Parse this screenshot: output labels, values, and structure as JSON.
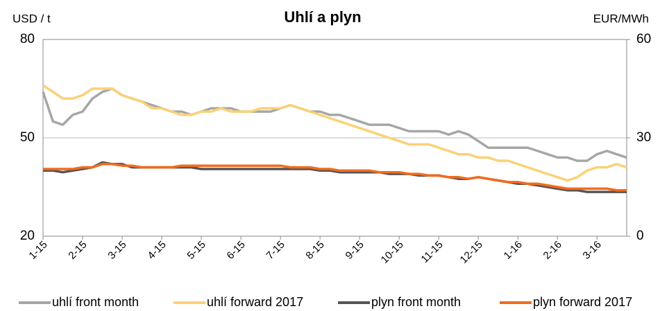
{
  "chart_data": {
    "type": "line",
    "title": "Uhlí a plyn",
    "y_label": "USD / t",
    "y2_label": "EUR/MWh",
    "categories": [
      "1-15",
      null,
      null,
      null,
      "2-15",
      null,
      null,
      null,
      "3-15",
      null,
      null,
      null,
      "4-15",
      null,
      null,
      null,
      "5-15",
      null,
      null,
      null,
      "6-15",
      null,
      null,
      null,
      "7-15",
      null,
      null,
      null,
      "8-15",
      null,
      null,
      null,
      "9-15",
      null,
      null,
      null,
      "10-15",
      null,
      null,
      null,
      "11-15",
      null,
      null,
      null,
      "12-15",
      null,
      null,
      null,
      "1-16",
      null,
      null,
      null,
      "2-16",
      null,
      null,
      null,
      "3-16",
      null,
      null,
      null
    ],
    "ylim": [
      20,
      80
    ],
    "yticks": [
      20,
      50,
      80
    ],
    "y2lim": [
      0,
      60
    ],
    "y2ticks": [
      0,
      30,
      60
    ],
    "grid": true,
    "legend": "bottom",
    "series": [
      {
        "name": "uhlí front month",
        "color": "#a6a6a6",
        "values": [
          64,
          55,
          54,
          57,
          58,
          62,
          64,
          65,
          63,
          62,
          61,
          60,
          59,
          58,
          58,
          57,
          58,
          59,
          59,
          59,
          58,
          58,
          58,
          58,
          59,
          60,
          59,
          58,
          58,
          57,
          57,
          56,
          55,
          54,
          54,
          54,
          53,
          52,
          52,
          52,
          52,
          51,
          52,
          51,
          49,
          47,
          47,
          47,
          47,
          47,
          46,
          45,
          44,
          44,
          43,
          43,
          45,
          46,
          45,
          44
        ]
      },
      {
        "name": "uhlí forward 2017",
        "color": "#fbd175",
        "values": [
          66,
          64,
          62,
          62,
          63,
          65,
          65,
          65,
          63,
          62,
          61,
          59,
          59,
          58,
          57,
          57,
          58,
          58,
          59,
          58,
          58,
          58,
          59,
          59,
          59,
          60,
          59,
          58,
          57,
          56,
          55,
          54,
          53,
          52,
          51,
          50,
          49,
          48,
          48,
          48,
          47,
          46,
          45,
          45,
          44,
          44,
          43,
          43,
          42,
          41,
          40,
          39,
          38,
          37,
          38,
          40,
          41,
          41,
          42,
          41
        ]
      },
      {
        "name": "plyn front month",
        "color": "#555555",
        "axis": "y2",
        "values": [
          20,
          20,
          19.5,
          20,
          20.5,
          21,
          22.5,
          22,
          22,
          21,
          21,
          21,
          21,
          21,
          21,
          21,
          20.5,
          20.5,
          20.5,
          20.5,
          20.5,
          20.5,
          20.5,
          20.5,
          20.5,
          20.5,
          20.5,
          20.5,
          20,
          20,
          19.5,
          19.5,
          19.5,
          19.5,
          19.5,
          19,
          19,
          19,
          18.5,
          18.5,
          18.5,
          18,
          17.5,
          17.5,
          18,
          17.5,
          17,
          16.5,
          16,
          16,
          15.5,
          15,
          14.5,
          14,
          14,
          13.5,
          13.5,
          13.5,
          13.5,
          13.5
        ]
      },
      {
        "name": "plyn forward 2017",
        "color": "#f26b1d",
        "axis": "y2",
        "values": [
          20.5,
          20.5,
          20.5,
          20.5,
          21,
          21,
          22,
          22,
          21.5,
          21.5,
          21,
          21,
          21,
          21,
          21.5,
          21.5,
          21.5,
          21.5,
          21.5,
          21.5,
          21.5,
          21.5,
          21.5,
          21.5,
          21.5,
          21,
          21,
          21,
          20.5,
          20.5,
          20,
          20,
          20,
          20,
          19.5,
          19.5,
          19.5,
          19,
          19,
          18.5,
          18.5,
          18,
          18,
          17.5,
          18,
          17.5,
          17,
          16.5,
          16.5,
          16,
          16,
          15.5,
          15,
          14.5,
          14.5,
          14.5,
          14.5,
          14.5,
          14,
          14
        ]
      }
    ]
  }
}
